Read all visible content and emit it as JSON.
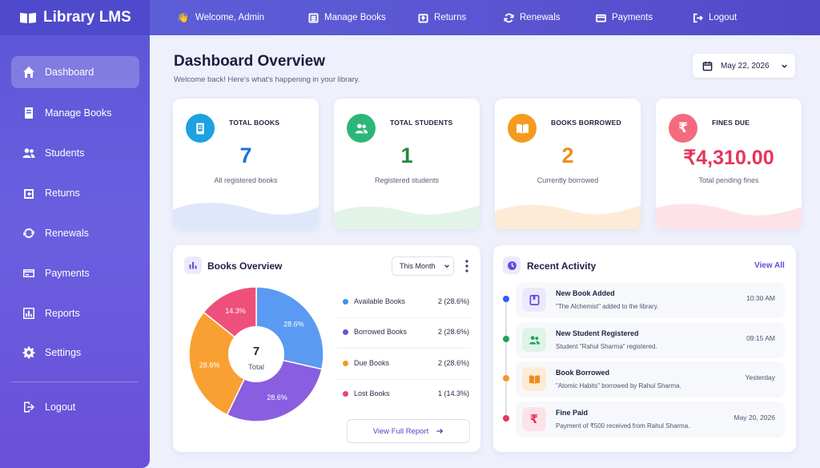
{
  "brand": {
    "name": "Library LMS"
  },
  "sidebar": {
    "items": [
      {
        "label": "Dashboard",
        "icon": "home-icon",
        "active": true
      },
      {
        "label": "Manage Books",
        "icon": "book-icon"
      },
      {
        "label": "Students",
        "icon": "users-icon"
      },
      {
        "label": "Returns",
        "icon": "return-icon"
      },
      {
        "label": "Renewals",
        "icon": "refresh-icon"
      },
      {
        "label": "Payments",
        "icon": "card-icon"
      },
      {
        "label": "Reports",
        "icon": "bar-chart-icon"
      },
      {
        "label": "Settings",
        "icon": "gear-icon"
      }
    ],
    "logout": {
      "label": "Logout",
      "icon": "logout-icon"
    }
  },
  "topbar": {
    "welcome": "Welcome, Admin",
    "links": [
      {
        "label": "Manage Books",
        "icon": "list-icon"
      },
      {
        "label": "Returns",
        "icon": "return-icon"
      },
      {
        "label": "Renewals",
        "icon": "refresh-icon"
      },
      {
        "label": "Payments",
        "icon": "card-icon"
      },
      {
        "label": "Logout",
        "icon": "logout-icon"
      }
    ]
  },
  "header": {
    "title": "Dashboard Overview",
    "subtitle": "Welcome back! Here's what's happening in your library.",
    "date": "May 22, 2026"
  },
  "stats": [
    {
      "label": "TOTAL BOOKS",
      "value": "7",
      "caption": "All registered books",
      "color": "#1f6fe0",
      "icon_bg": "#1da1e0",
      "wave": "#dfe8fb"
    },
    {
      "label": "TOTAL STUDENTS",
      "value": "1",
      "caption": "Registered students",
      "color": "#1f8a3c",
      "icon_bg": "#2db67a",
      "wave": "#e2f4e8"
    },
    {
      "label": "BOOKS BORROWED",
      "value": "2",
      "caption": "Currently borrowed",
      "color": "#f08c1e",
      "icon_bg": "#f59a1f",
      "wave": "#fdebd8"
    },
    {
      "label": "FINES DUE",
      "value": "₹4,310.00",
      "caption": "Total pending fines",
      "color": "#e8345a",
      "icon_bg": "#f46a7e",
      "wave": "#fde3e7"
    }
  ],
  "books_overview": {
    "title": "Books Overview",
    "period": "This Month",
    "center_value": "7",
    "center_label": "Total",
    "view_full_report": "View Full Report",
    "legend": [
      {
        "name": "Available Books",
        "value": "2 (28.6%)",
        "color": "#3f8ef0"
      },
      {
        "name": "Borrowed Books",
        "value": "2 (28.6%)",
        "color": "#6c4fd8"
      },
      {
        "name": "Due Books",
        "value": "2 (28.6%)",
        "color": "#f49a25"
      },
      {
        "name": "Lost Books",
        "value": "1 (14.3%)",
        "color": "#ee3f6b"
      }
    ]
  },
  "chart_data": {
    "type": "pie",
    "categories": [
      "Available Books",
      "Borrowed Books",
      "Due Books",
      "Lost Books"
    ],
    "values": [
      2,
      2,
      2,
      1
    ],
    "labels": [
      "28.6%",
      "28.6%",
      "28.6%",
      "14.3%"
    ],
    "colors": [
      "#5a9af2",
      "#8a5ee0",
      "#f9a032",
      "#ef4f7b"
    ]
  },
  "recent_activity": {
    "title": "Recent Activity",
    "view_all": "View All",
    "items": [
      {
        "title": "New Book Added",
        "desc": "\"The Alchemist\" added to the library.",
        "time": "10:30 AM",
        "dot": "#2f5ff0",
        "icon": "book-add-icon",
        "icon_bg": "#ece9fd",
        "icon_color": "#5b4fd9"
      },
      {
        "title": "New Student Registered",
        "desc": "Student \"Rahul Sharma\" registered.",
        "time": "09:15 AM",
        "dot": "#1fa35a",
        "icon": "users-icon",
        "icon_bg": "#dff3e7",
        "icon_color": "#25a05e"
      },
      {
        "title": "Book Borrowed",
        "desc": "\"Atomic Habits\" borrowed by Rahul Sharma.",
        "time": "Yesterday",
        "dot": "#f49a25",
        "icon": "open-book-icon",
        "icon_bg": "#fdebd6",
        "icon_color": "#f08c1e"
      },
      {
        "title": "Fine Paid",
        "desc": "Payment of ₹500 received from Rahul Sharma.",
        "time": "May 20, 2026",
        "dot": "#e8345a",
        "icon": "rupee-icon",
        "icon_bg": "#fde3e8",
        "icon_color": "#e8345a"
      }
    ]
  }
}
